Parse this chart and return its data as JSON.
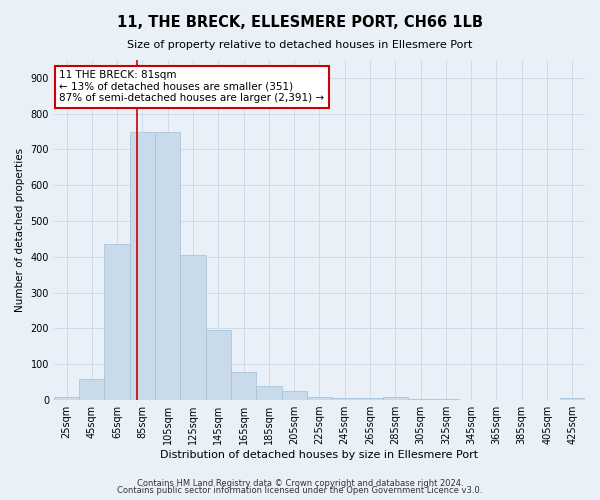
{
  "title": "11, THE BRECK, ELLESMERE PORT, CH66 1LB",
  "subtitle": "Size of property relative to detached houses in Ellesmere Port",
  "xlabel": "Distribution of detached houses by size in Ellesmere Port",
  "ylabel": "Number of detached properties",
  "footer_line1": "Contains HM Land Registry data © Crown copyright and database right 2024.",
  "footer_line2": "Contains public sector information licensed under the Open Government Licence v3.0.",
  "bar_color": "#c9daea",
  "bar_edge_color": "#a0c0d8",
  "grid_color": "#c8d8ea",
  "background_color": "#eaf0f8",
  "fig_background_color": "#eaf0f8",
  "property_line_color": "#cc0000",
  "annotation_line1": "11 THE BRECK: 81sqm",
  "annotation_line2": "← 13% of detached houses are smaller (351)",
  "annotation_line3": "87% of semi-detached houses are larger (2,391) →",
  "annotation_box_color": "#ffffff",
  "annotation_border_color": "#cc0000",
  "property_sqm": 81,
  "bin_labels": [
    "25sqm",
    "45sqm",
    "65sqm",
    "85sqm",
    "105sqm",
    "125sqm",
    "145sqm",
    "165sqm",
    "185sqm",
    "205sqm",
    "225sqm",
    "245sqm",
    "265sqm",
    "285sqm",
    "305sqm",
    "325sqm",
    "345sqm",
    "365sqm",
    "385sqm",
    "405sqm",
    "425sqm"
  ],
  "bin_edges": [
    15,
    35,
    55,
    75,
    95,
    115,
    135,
    155,
    175,
    195,
    215,
    235,
    255,
    275,
    295,
    315,
    335,
    355,
    375,
    395,
    415,
    435
  ],
  "bar_heights": [
    10,
    60,
    435,
    750,
    750,
    405,
    195,
    78,
    40,
    25,
    10,
    6,
    5,
    10,
    3,
    2,
    1,
    1,
    1,
    0,
    5
  ],
  "ylim": [
    0,
    950
  ],
  "yticks": [
    0,
    100,
    200,
    300,
    400,
    500,
    600,
    700,
    800,
    900
  ],
  "title_fontsize": 10.5,
  "subtitle_fontsize": 8,
  "ylabel_fontsize": 7.5,
  "xlabel_fontsize": 8,
  "tick_fontsize": 7,
  "annotation_fontsize": 7.5,
  "footer_fontsize": 6
}
